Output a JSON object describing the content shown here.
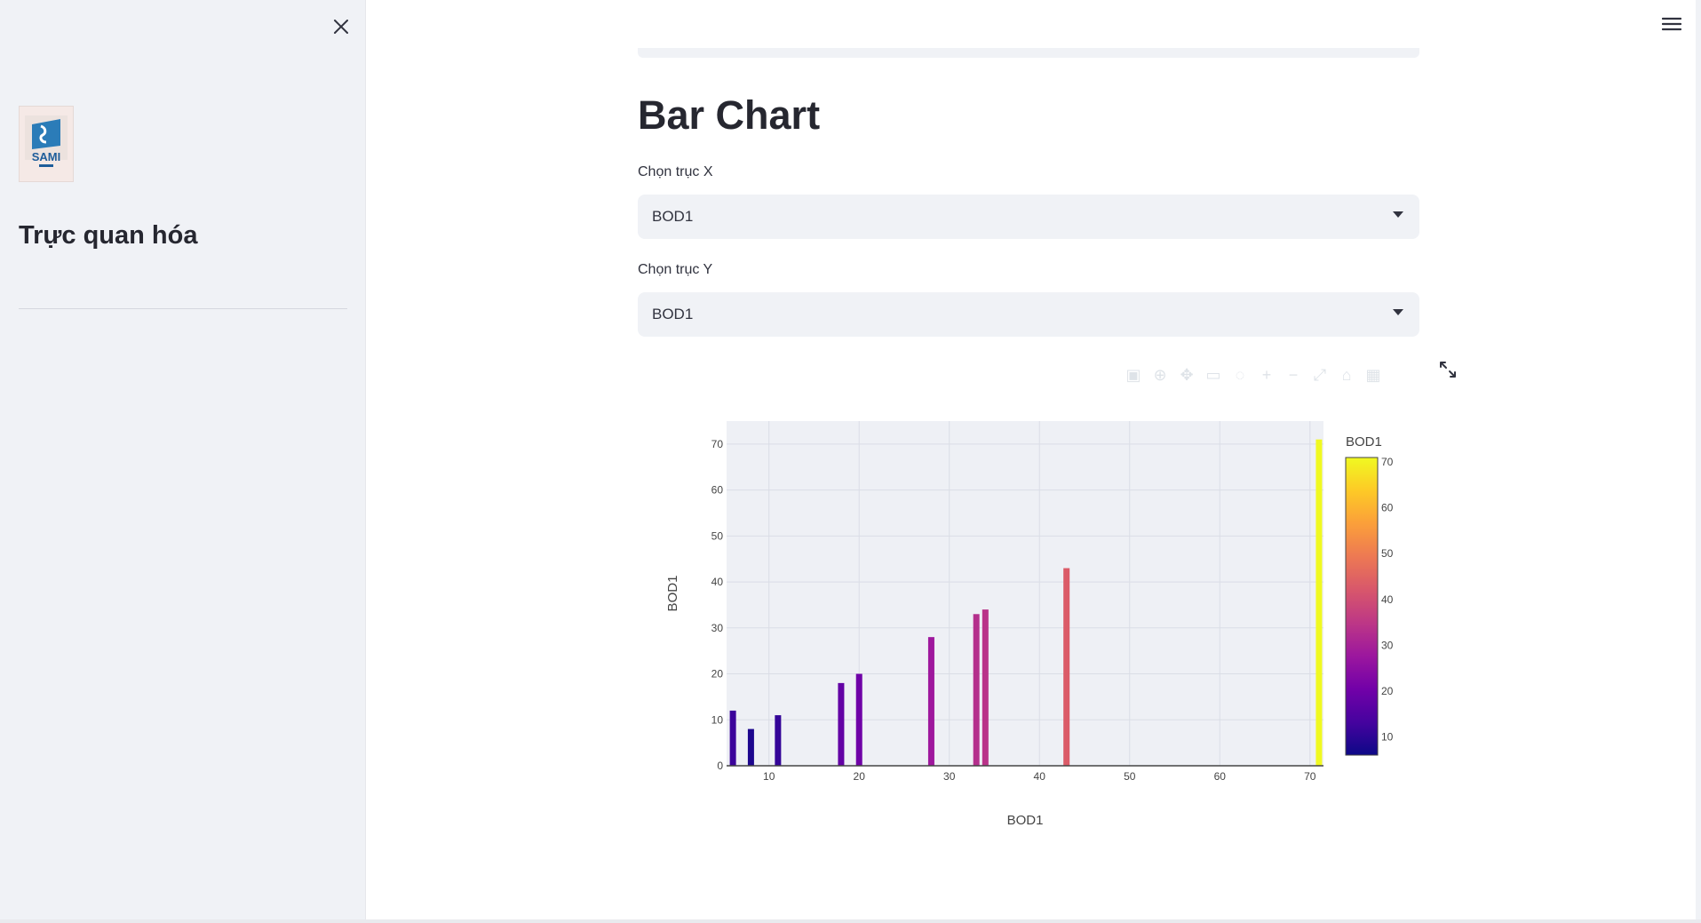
{
  "sidebar": {
    "title": "Trực quan hóa",
    "logo_text": "SAMI"
  },
  "main": {
    "title": "Bar Chart",
    "x_select": {
      "label": "Chọn trục X",
      "value": "BOD1"
    },
    "y_select": {
      "label": "Chọn trục Y",
      "value": "BOD1"
    }
  },
  "icons": {
    "close": "close-icon",
    "menu": "hamburger-menu-icon",
    "fullscreen": "fullscreen-icon",
    "dropdown": "chevron-down-icon"
  },
  "colors": {
    "plot_bg": "#eef0f5",
    "axis_line": "#444444",
    "gridline": "#dadde6",
    "colorscale": [
      "#0d0887",
      "#46039f",
      "#7201a8",
      "#9c179e",
      "#bd3786",
      "#d8576b",
      "#ed7953",
      "#fb9f3a",
      "#fdca26",
      "#f0f921"
    ]
  },
  "chart_data": {
    "type": "bar",
    "xlabel": "BOD1",
    "ylabel": "BOD1",
    "x_ticks": [
      10,
      20,
      30,
      40,
      50,
      60,
      70
    ],
    "y_ticks": [
      0,
      10,
      20,
      30,
      40,
      50,
      60,
      70
    ],
    "xlim": [
      5.3,
      71.5
    ],
    "ylim": [
      0,
      75
    ],
    "x": [
      6,
      8,
      11,
      18,
      20,
      28,
      33,
      34,
      43,
      71
    ],
    "values": [
      12,
      8,
      11,
      18,
      20,
      28,
      33,
      34,
      43,
      71
    ],
    "grid": true,
    "legend_placement": "right",
    "colorbar": {
      "title": "BOD1",
      "ticks": [
        10,
        20,
        30,
        40,
        50,
        60,
        70
      ],
      "range": [
        6,
        71
      ]
    }
  }
}
